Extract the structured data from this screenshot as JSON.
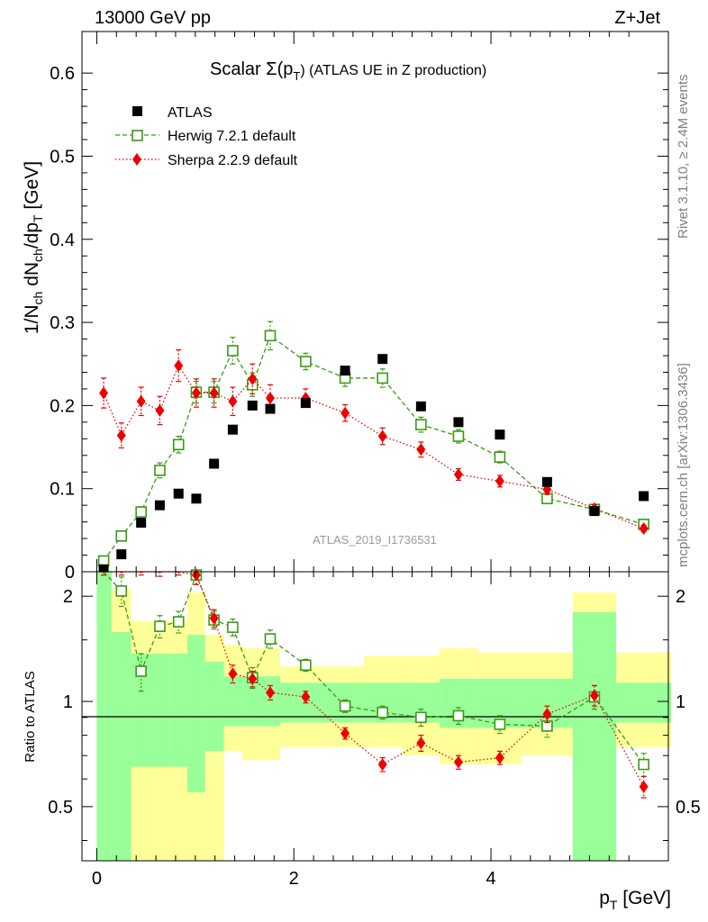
{
  "header": {
    "energy_label": "13000 GeV pp",
    "process_label": "Z+Jet"
  },
  "side_labels": {
    "rivet": "Rivet 3.1.10, ≥ 2.4M events",
    "mcplots": "mcplots.cern.ch [arXiv:1306.3436]"
  },
  "chart_data": {
    "type": "scatter",
    "title_main": "Scalar Σ(p",
    "title_sub": "T",
    "title_tail": ")  (ATLAS UE in Z production)",
    "analysis_id": "ATLAS_2019_I1736531",
    "ylabel": {
      "pre": "1/N",
      "sub1": "ch",
      "mid": " dN",
      "sub2": "ch",
      "mid2": "/dp",
      "sub3": "T",
      "post": " [GeV]"
    },
    "xlabel": {
      "main": "p",
      "sub": "T",
      "post": " [GeV]"
    },
    "ratio_ylabel": "Ratio to ATLAS",
    "xlim": [
      -0.15,
      5.8
    ],
    "ylim": [
      0,
      0.65
    ],
    "ratio_ylim": [
      0.35,
      2.35
    ],
    "x_ticks": [
      "0",
      "2",
      "4"
    ],
    "x_tick_values": [
      0,
      2,
      4
    ],
    "y_ticks": [
      "0",
      "0.1",
      "0.2",
      "0.3",
      "0.4",
      "0.5",
      "0.6"
    ],
    "y_tick_values": [
      0,
      0.1,
      0.2,
      0.3,
      0.4,
      0.5,
      0.6
    ],
    "ratio_ticks": [
      "0.5",
      "1",
      "2"
    ],
    "ratio_tick_values": [
      0.5,
      1,
      2
    ],
    "legend_position": "top-left",
    "series": [
      {
        "name": "ATLAS",
        "color": "#000000",
        "marker": "filled-square",
        "x": [
          0.07,
          0.25,
          0.45,
          0.64,
          0.83,
          1.01,
          1.19,
          1.38,
          1.58,
          1.76,
          2.12,
          2.52,
          2.9,
          3.29,
          3.67,
          4.09,
          4.57,
          5.05,
          5.55
        ],
        "y": [
          0.003,
          0.021,
          0.059,
          0.08,
          0.094,
          0.088,
          0.13,
          0.171,
          0.2,
          0.196,
          0.203,
          0.242,
          0.256,
          0.199,
          0.18,
          0.165,
          0.108,
          0.073,
          0.091
        ]
      },
      {
        "name": "Herwig 7.2.1 default",
        "color": "#3a9a15",
        "marker": "open-square",
        "x": [
          0.07,
          0.25,
          0.45,
          0.64,
          0.83,
          1.01,
          1.19,
          1.38,
          1.58,
          1.76,
          2.12,
          2.52,
          2.9,
          3.29,
          3.67,
          4.09,
          4.57,
          5.05,
          5.55
        ],
        "y": [
          0.013,
          0.043,
          0.072,
          0.122,
          0.153,
          0.216,
          0.216,
          0.266,
          0.225,
          0.284,
          0.253,
          0.233,
          0.233,
          0.177,
          0.163,
          0.138,
          0.088,
          0.075,
          0.057
        ],
        "err": [
          0.002,
          0.004,
          0.006,
          0.009,
          0.01,
          0.013,
          0.013,
          0.016,
          0.014,
          0.017,
          0.01,
          0.01,
          0.011,
          0.009,
          0.008,
          0.007,
          0.005,
          0.005,
          0.003
        ]
      },
      {
        "name": "Sherpa 2.2.9 default",
        "color": "#ee0000",
        "marker": "filled-diamond",
        "x": [
          0.07,
          0.25,
          0.45,
          0.64,
          0.83,
          1.01,
          1.19,
          1.38,
          1.58,
          1.76,
          2.12,
          2.52,
          2.9,
          3.29,
          3.67,
          4.09,
          4.57,
          5.05,
          5.55
        ],
        "y": [
          0.215,
          0.164,
          0.205,
          0.194,
          0.248,
          0.215,
          0.215,
          0.205,
          0.232,
          0.209,
          0.209,
          0.191,
          0.163,
          0.147,
          0.117,
          0.109,
          0.099,
          0.076,
          0.052
        ],
        "err": [
          0.018,
          0.015,
          0.017,
          0.017,
          0.019,
          0.017,
          0.017,
          0.017,
          0.018,
          0.016,
          0.011,
          0.01,
          0.01,
          0.009,
          0.007,
          0.007,
          0.006,
          0.005,
          0.004
        ]
      }
    ],
    "ratio_series": [
      {
        "name": "Herwig 7.2.1 default",
        "x": [
          0.07,
          0.25,
          0.45,
          0.64,
          0.83,
          1.01,
          1.19,
          1.38,
          1.58,
          1.76,
          2.12,
          2.52,
          2.9,
          3.29,
          3.67,
          4.09,
          4.57,
          5.05,
          5.55
        ],
        "y": [
          2.6,
          2.07,
          1.22,
          1.64,
          1.69,
          2.3,
          1.71,
          1.63,
          1.17,
          1.51,
          1.27,
          0.97,
          0.93,
          0.9,
          0.91,
          0.86,
          0.85,
          1.03,
          0.66
        ],
        "err": [
          0.3,
          0.2,
          0.15,
          0.12,
          0.12,
          0.14,
          0.1,
          0.09,
          0.08,
          0.09,
          0.05,
          0.04,
          0.04,
          0.05,
          0.05,
          0.05,
          0.06,
          0.08,
          0.05
        ]
      },
      {
        "name": "Sherpa 2.2.9 default",
        "x": [
          0.07,
          0.25,
          0.45,
          0.64,
          0.83,
          1.01,
          1.19,
          1.38,
          1.58,
          1.76,
          2.12,
          2.52,
          2.9,
          3.29,
          3.67,
          4.09,
          4.57,
          5.05,
          5.55
        ],
        "y": [
          2.6,
          2.6,
          2.6,
          2.43,
          2.6,
          2.3,
          1.73,
          1.2,
          1.16,
          1.06,
          1.03,
          0.81,
          0.66,
          0.76,
          0.67,
          0.69,
          0.92,
          1.04,
          0.57
        ],
        "err": [
          0.3,
          0.3,
          0.3,
          0.15,
          0.3,
          0.14,
          0.1,
          0.07,
          0.06,
          0.05,
          0.04,
          0.03,
          0.03,
          0.04,
          0.03,
          0.03,
          0.05,
          0.07,
          0.04
        ]
      }
    ],
    "uncertainty_bands": {
      "edges": [
        0,
        0.15,
        0.35,
        0.55,
        0.73,
        0.92,
        1.1,
        1.29,
        1.48,
        1.67,
        1.86,
        2.32,
        2.71,
        3.1,
        3.48,
        3.87,
        4.31,
        4.83,
        5.27,
        5.83
      ],
      "green_low": [
        0.35,
        0.35,
        0.65,
        0.65,
        0.65,
        0.55,
        0.72,
        0.85,
        0.85,
        0.85,
        0.87,
        0.87,
        0.87,
        0.87,
        0.84,
        0.84,
        0.84,
        0.35,
        0.87
      ],
      "green_high": [
        2.35,
        1.58,
        1.37,
        1.37,
        1.37,
        1.55,
        1.3,
        1.18,
        1.18,
        1.18,
        1.13,
        1.13,
        1.13,
        1.13,
        1.16,
        1.16,
        1.16,
        1.8,
        1.13
      ],
      "yellow_low": [
        0.35,
        0.35,
        0.35,
        0.35,
        0.35,
        0.35,
        0.35,
        0.72,
        0.68,
        0.68,
        0.74,
        0.74,
        0.74,
        0.7,
        0.66,
        0.66,
        0.7,
        0.35,
        0.74
      ],
      "yellow_high": [
        2.35,
        2.1,
        1.7,
        1.7,
        1.7,
        2.05,
        1.55,
        1.45,
        1.42,
        1.42,
        1.26,
        1.26,
        1.35,
        1.35,
        1.42,
        1.38,
        1.38,
        2.05,
        1.38
      ],
      "green_color": "#99ff99",
      "yellow_color": "#ffff99"
    }
  }
}
